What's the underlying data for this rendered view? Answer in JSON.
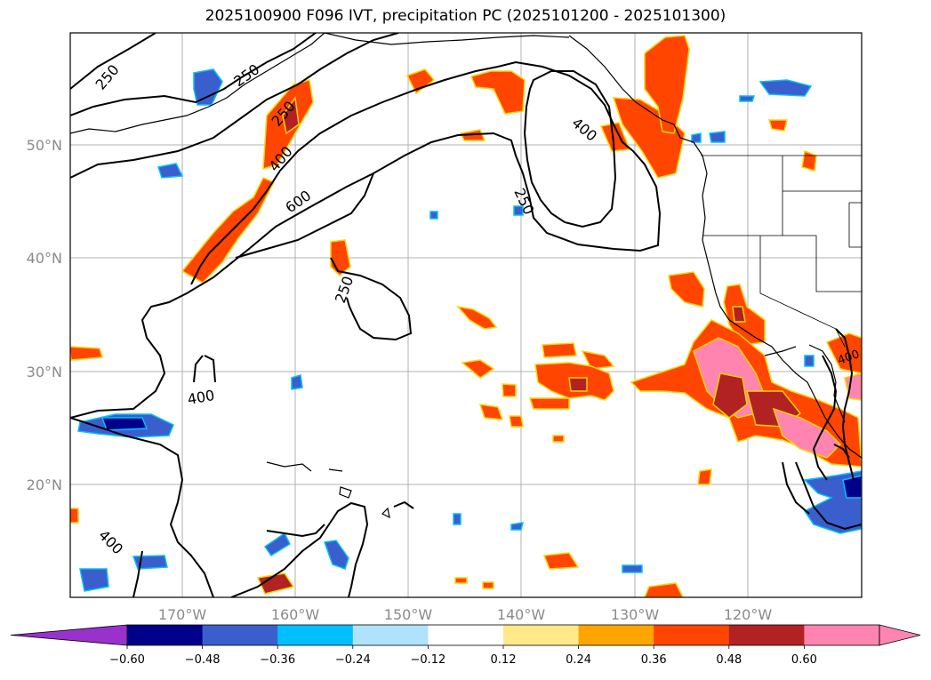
{
  "title": "2025100900 F096 IVT, precipitation PC (2025101200 - 2025101300)",
  "lat_labels": [
    "50°N",
    "40°N",
    "30°N",
    "20°N"
  ],
  "lon_labels": [
    "170°W",
    "160°W",
    "150°W",
    "140°W",
    "130°W",
    "120°W"
  ],
  "contour_labels": [
    "250",
    "250",
    "250",
    "250",
    "250",
    "400",
    "400",
    "400",
    "400",
    "600",
    "400"
  ],
  "colorbar": {
    "ticks": [
      "−0.60",
      "−0.48",
      "−0.36",
      "−0.24",
      "−0.12",
      "0.12",
      "0.24",
      "0.36",
      "0.48",
      "0.60"
    ],
    "colors": [
      "#9932cc",
      "#00008b",
      "#3a5fcd",
      "#00bfff",
      "#afe3fb",
      "#ffffff",
      "#ffe98a",
      "#ffa500",
      "#ff4500",
      "#b22222",
      "#ff85b0",
      "#ff85b0"
    ]
  }
}
